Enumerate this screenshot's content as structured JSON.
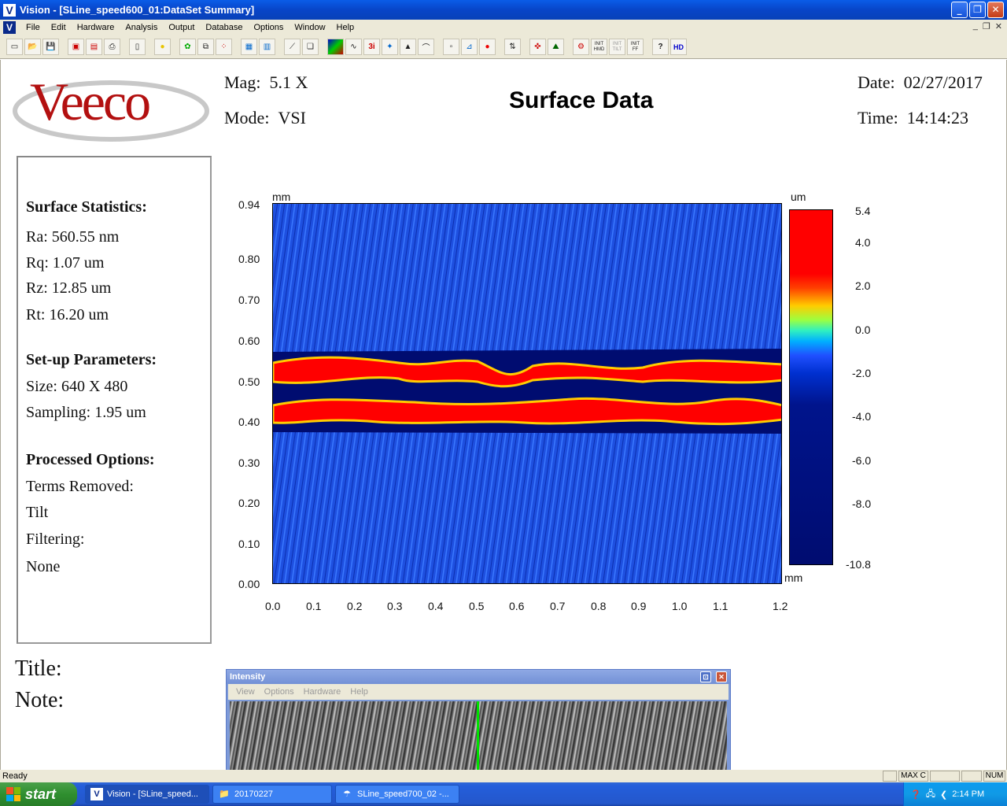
{
  "window": {
    "app_icon": "V",
    "title": "Vision - [SLine_speed600_01:DataSet Summary]",
    "buttons": [
      "_",
      "❐",
      "✕"
    ]
  },
  "menu": {
    "items": [
      "File",
      "Edit",
      "Hardware",
      "Analysis",
      "Output",
      "Database",
      "Options",
      "Window",
      "Help"
    ],
    "mdi": [
      "_",
      "❐",
      "✕"
    ]
  },
  "toolbar": {
    "icons": [
      "new-icon",
      "open-icon",
      "save-icon",
      "print-preview-icon",
      "save-red-icon",
      "print-icon",
      "page-icon",
      "light-icon",
      "palette-icon",
      "copy-icon",
      "dots-icon",
      "list-icon",
      "table-icon",
      "ruler-icon",
      "stack-icon",
      "color-map-icon",
      "profile-icon",
      "3d-icon",
      "histogram-icon",
      "peak-icon",
      "line-icon",
      "blank-icon",
      "measure-icon",
      "record-icon",
      "stage-icon",
      "target-icon",
      "chart-icon",
      "init-icon",
      "init-hmd-icon",
      "init-tilt-icon",
      "init-ff-icon",
      "help-icon",
      "hd-icon"
    ],
    "labels": {
      "init_hmd": "INIT HMD",
      "init_tilt": "INIT TILT",
      "init_ff": "INIT FF",
      "help": "?",
      "hd": "HD",
      "three_i": "3i"
    }
  },
  "header": {
    "logo": "Veeco",
    "mag_label": "Mag:",
    "mag_value": "5.1 X",
    "mode_label": "Mode:",
    "mode_value": "VSI",
    "title": "Surface Data",
    "date_label": "Date:",
    "date_value": "02/27/2017",
    "time_label": "Time:",
    "time_value": "14:14:23"
  },
  "stats": {
    "surface_heading": "Surface Statistics:",
    "ra": "Ra:  560.55 nm",
    "rq": "Rq:  1.07 um",
    "rz": "Rz:  12.85 um",
    "rt": "Rt:  16.20 um",
    "setup_heading": "Set-up Parameters:",
    "size": "Size: 640 X 480",
    "sampling": "Sampling:  1.95 um",
    "processed_heading": "Processed Options:",
    "terms_removed": "Terms Removed:",
    "tilt": "Tilt",
    "filtering": "Filtering:",
    "none": "None"
  },
  "notes": {
    "title_label": "Title:",
    "note_label": "Note:"
  },
  "chart_data": {
    "type": "heatmap",
    "x_unit": "mm",
    "y_unit": "mm",
    "z_unit": "um",
    "x_ticks": [
      "0.0",
      "0.1",
      "0.2",
      "0.3",
      "0.4",
      "0.5",
      "0.6",
      "0.7",
      "0.8",
      "0.9",
      "1.0",
      "1.1",
      "1.2"
    ],
    "y_ticks": [
      "0.94",
      "0.80",
      "0.70",
      "0.60",
      "0.50",
      "0.40",
      "0.30",
      "0.20",
      "0.10",
      "0.00"
    ],
    "xlim": [
      0,
      1.25
    ],
    "ylim": [
      0,
      0.94
    ],
    "colorbar_ticks": [
      "5.4",
      "4.0",
      "2.0",
      "0.0",
      "-2.0",
      "-4.0",
      "-6.0",
      "-8.0",
      "-10.8"
    ],
    "zlim": [
      -10.8,
      5.4
    ],
    "colors": {
      "high": "#ff0000",
      "mid": "#00b0ff",
      "low": "#000c70",
      "base": "#1e50e0"
    }
  },
  "intensity": {
    "title": "Intensity",
    "menu": [
      "View",
      "Options",
      "Hardware",
      "Help"
    ],
    "buttons": [
      "⊡",
      "✕"
    ]
  },
  "status": {
    "text": "Ready",
    "panels": [
      "MAX C",
      "NUM"
    ]
  },
  "taskbar": {
    "start": "start",
    "tasks": [
      {
        "icon": "V",
        "label": "Vision - [SLine_speed..."
      },
      {
        "icon": "📁",
        "label": "20170227"
      },
      {
        "icon": "☂",
        "label": "SLine_speed700_02 -..."
      }
    ],
    "clock": "2:14 PM"
  }
}
